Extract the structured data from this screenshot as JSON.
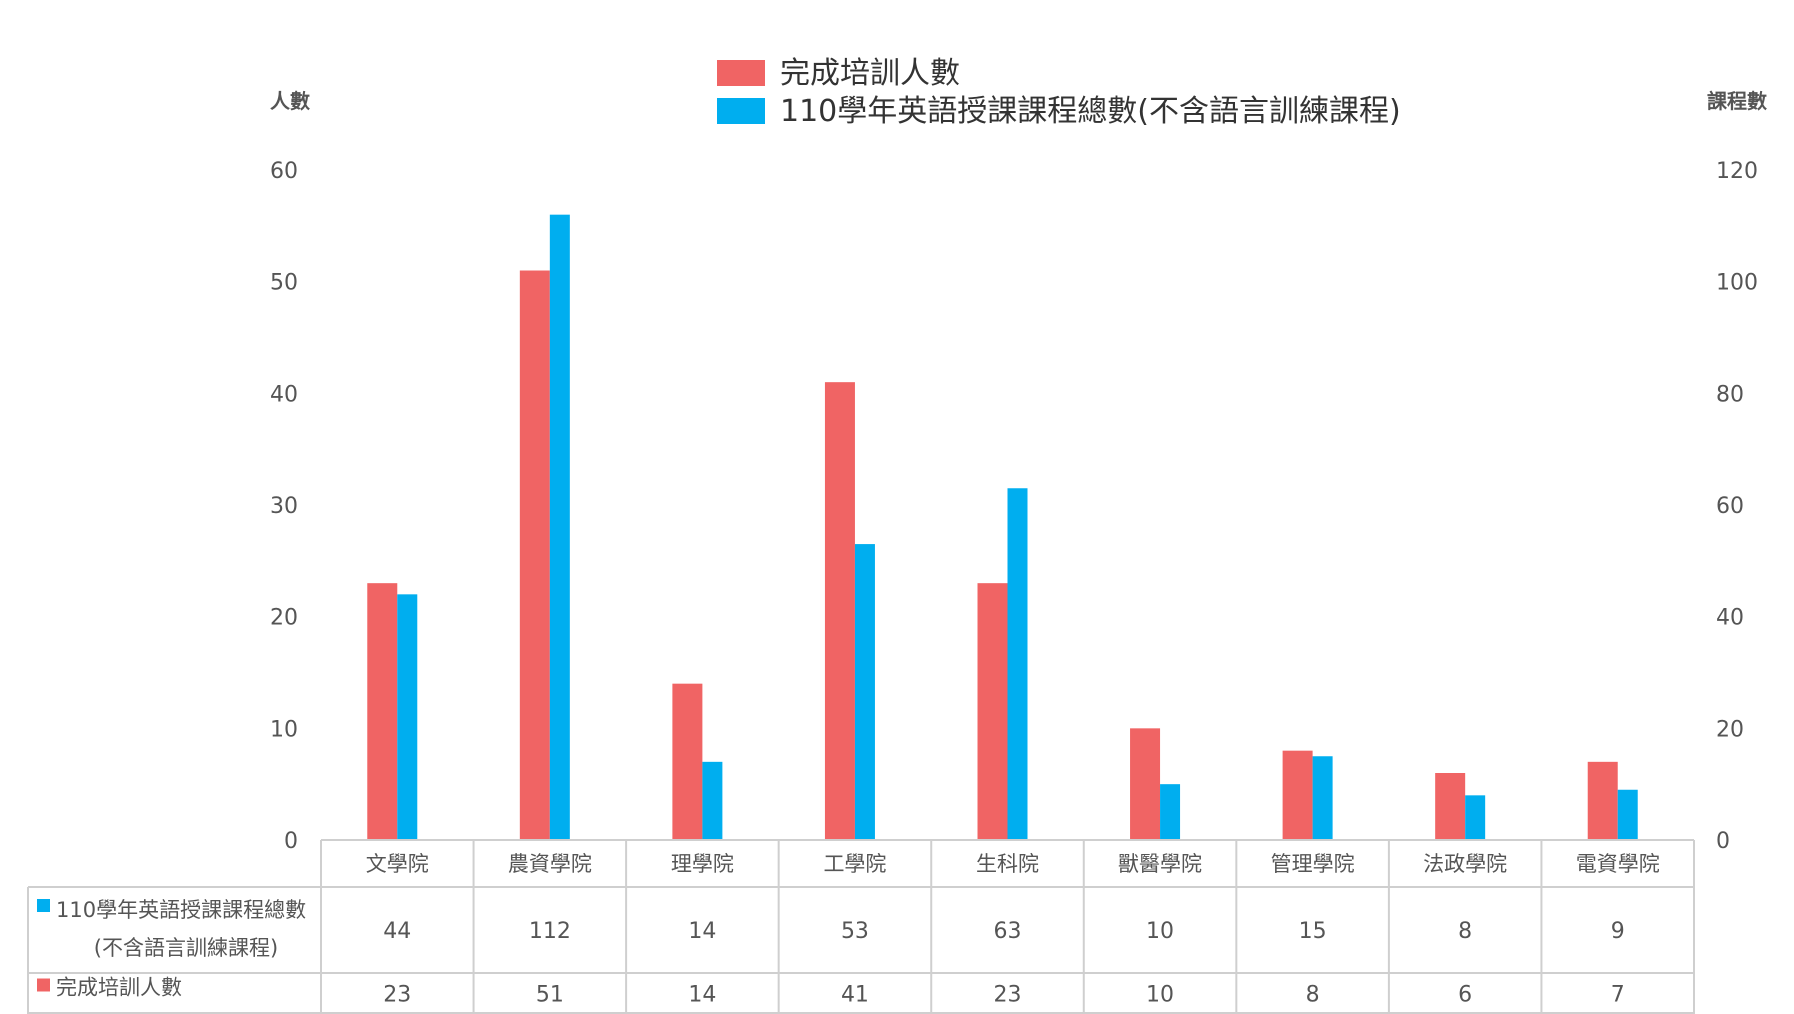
{
  "chart_data": {
    "type": "bar",
    "categories": [
      "文學院",
      "農資學院",
      "理學院",
      "工學院",
      "生科院",
      "獸醫學院",
      "管理學院",
      "法政學院",
      "電資學院"
    ],
    "series": [
      {
        "name": "完成培訓人數",
        "axis": "left",
        "color": "#F06464",
        "values": [
          23,
          51,
          14,
          41,
          23,
          10,
          8,
          6,
          7
        ]
      },
      {
        "name": "110學年英語授課課程總數(不含語言訓練課程)",
        "axis": "right",
        "color": "#00AEEF",
        "values": [
          44,
          112,
          14,
          53,
          63,
          10,
          15,
          8,
          9
        ]
      }
    ],
    "y_left": {
      "label": "人數",
      "ylim": [
        0,
        60
      ],
      "ticks": [
        0,
        10,
        20,
        30,
        40,
        50,
        60
      ]
    },
    "y_right": {
      "label": "課程數",
      "ylim": [
        0,
        120
      ],
      "ticks": [
        0,
        20,
        40,
        60,
        80,
        100,
        120
      ]
    },
    "legend": {
      "placement": "top-center",
      "entries": [
        "完成培訓人數",
        "110學年英語授課課程總數(不含語言訓練課程)"
      ]
    },
    "data_table": {
      "rows": [
        {
          "label_lines": [
            "110學年英語授課課程總數",
            "(不含語言訓練課程)"
          ],
          "series": "110學年英語授課課程總數(不含語言訓練課程)",
          "values": [
            44,
            112,
            14,
            53,
            63,
            10,
            15,
            8,
            9
          ]
        },
        {
          "label_lines": [
            "完成培訓人數"
          ],
          "series": "完成培訓人數",
          "values": [
            23,
            51,
            14,
            41,
            23,
            10,
            8,
            6,
            7
          ]
        }
      ]
    },
    "grid": false
  }
}
